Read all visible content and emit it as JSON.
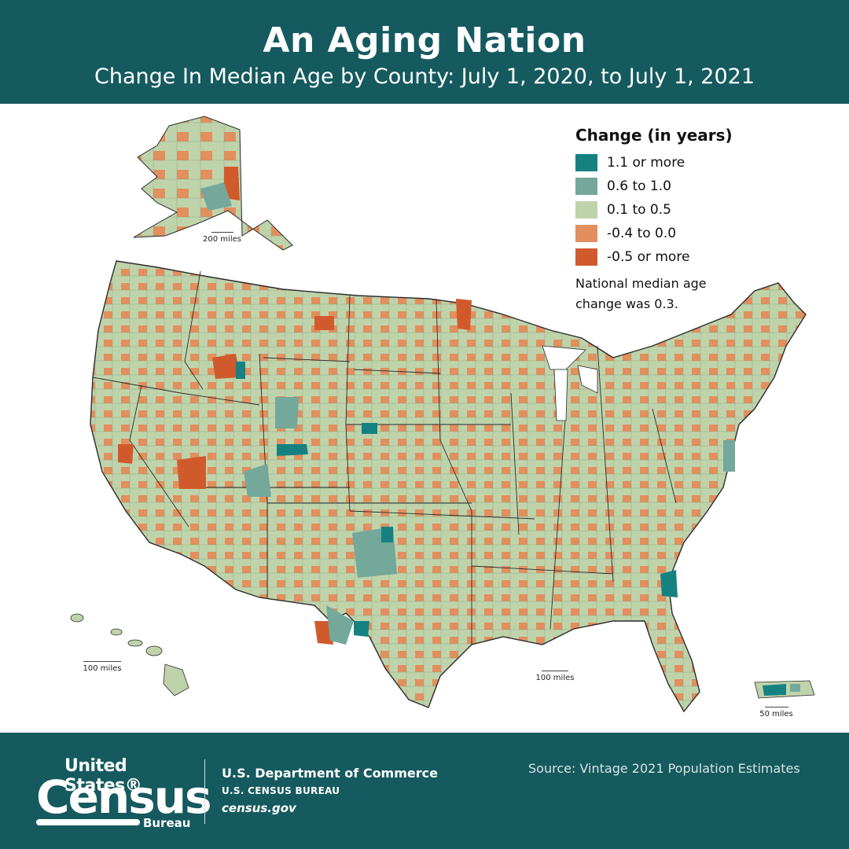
{
  "header": {
    "title": "An Aging Nation",
    "subtitle": "Change In Median Age by County: July 1, 2020, to July 1, 2021"
  },
  "legend": {
    "title": "Change (in years)",
    "items": [
      {
        "label": "1.1 or more",
        "color": "#158281"
      },
      {
        "label": "0.6 to 1.0",
        "color": "#73a89a"
      },
      {
        "label": "0.1 to 0.5",
        "color": "#bfd3ab"
      },
      {
        "label": "-0.4 to 0.0",
        "color": "#e28e5d"
      },
      {
        "label": "-0.5 or more",
        "color": "#d15a2c"
      }
    ],
    "note": "National median age change was 0.3."
  },
  "scales": {
    "alaska": "200 miles",
    "hawaii": "100 miles",
    "conus": "100 miles",
    "puerto_rico": "50 miles"
  },
  "footer": {
    "logo_line1": "United States®",
    "logo_line2": "Census",
    "logo_line3": "Bureau",
    "dept1": "U.S. Department of Commerce",
    "dept2": "U.S. CENSUS BUREAU",
    "dept3": "census.gov",
    "source": "Source:  Vintage 2021 Population Estimates"
  },
  "colors": {
    "header_bg": "#155a5f",
    "map_base": "#bfd3ab",
    "border": "#2b2b2b"
  }
}
